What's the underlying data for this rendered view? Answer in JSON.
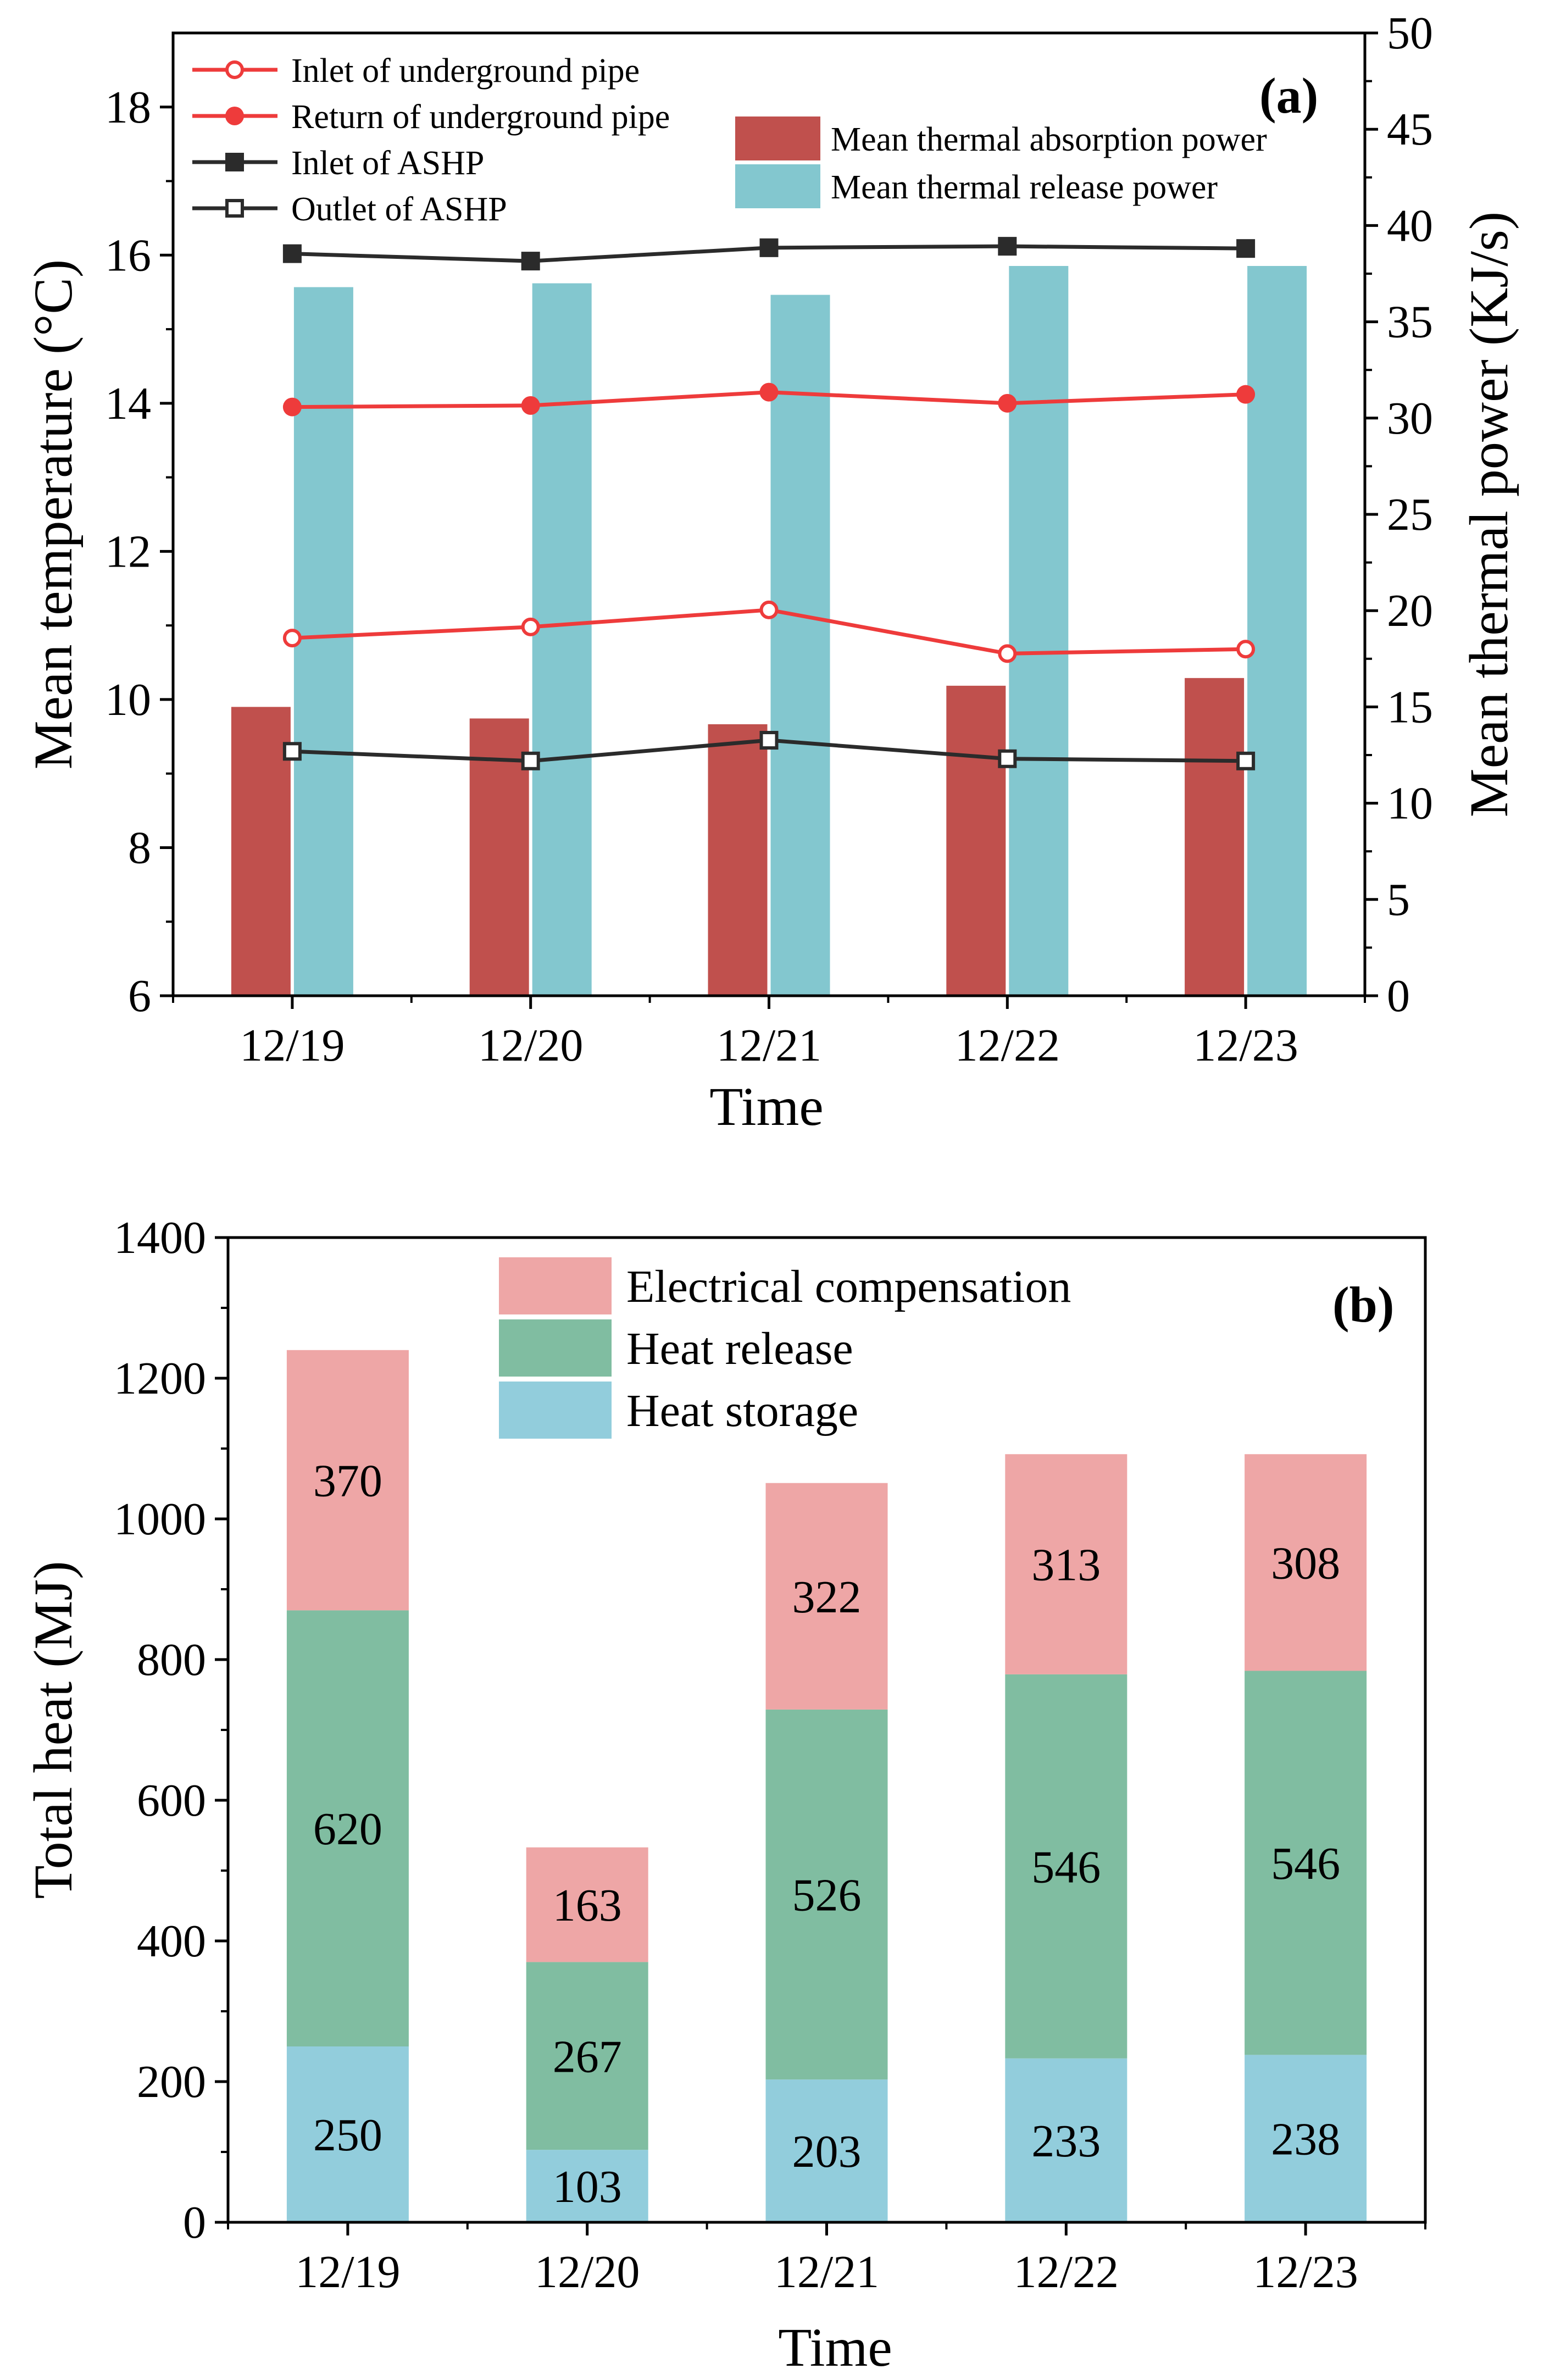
{
  "chart_data": [
    {
      "panel_label": "(a)",
      "type": "bar+line",
      "xlabel": "Time",
      "ylabel_left": "Mean temperature (°C)",
      "ylabel_right": "Mean thermal power (KJ/s)",
      "categories": [
        "12/19",
        "12/20",
        "12/21",
        "12/22",
        "12/23"
      ],
      "ylim_left": [
        6,
        19
      ],
      "yticks_left": [
        "6",
        "8",
        "10",
        "12",
        "14",
        "16",
        "18"
      ],
      "ylim_right": [
        0,
        50
      ],
      "yticks_right": [
        "0",
        "5",
        "10",
        "15",
        "20",
        "25",
        "30",
        "35",
        "40",
        "45",
        "50"
      ],
      "bar_series": [
        {
          "name": "Mean thermal absorption power",
          "color": "#c0504d",
          "values": [
            15.0,
            14.4,
            14.1,
            16.1,
            16.5
          ]
        },
        {
          "name": "Mean thermal release power",
          "color": "#83c7cf",
          "values": [
            36.8,
            37.0,
            36.4,
            37.9,
            37.9
          ]
        }
      ],
      "line_series": [
        {
          "name": "Inlet of underground pipe",
          "color": "#ee3b3b",
          "marker": "open-circle",
          "values": [
            10.83,
            10.98,
            11.21,
            10.62,
            10.68
          ]
        },
        {
          "name": "Return of underground pipe",
          "color": "#ee3b3b",
          "marker": "filled-circle",
          "values": [
            13.95,
            13.97,
            14.15,
            14.0,
            14.12
          ]
        },
        {
          "name": "Inlet of ASHP",
          "color": "#2b2b2b",
          "marker": "filled-square",
          "values": [
            16.02,
            15.92,
            16.1,
            16.12,
            16.09
          ]
        },
        {
          "name": "Outlet of ASHP",
          "color": "#2b2b2b",
          "marker": "open-square",
          "values": [
            9.3,
            9.17,
            9.45,
            9.2,
            9.17
          ]
        }
      ]
    },
    {
      "panel_label": "(b)",
      "type": "stacked-bar",
      "xlabel": "Time",
      "ylabel": "Total heat (MJ)",
      "categories": [
        "12/19",
        "12/20",
        "12/21",
        "12/22",
        "12/23"
      ],
      "ylim": [
        0,
        1400
      ],
      "yticks": [
        "0",
        "200",
        "400",
        "600",
        "800",
        "1000",
        "1200",
        "1400"
      ],
      "series": [
        {
          "name": "Heat storage",
          "color": "#92cddc",
          "values": [
            250,
            103,
            203,
            233,
            238
          ],
          "labels": [
            "250",
            "103",
            "203",
            "233",
            "238"
          ]
        },
        {
          "name": "Heat release",
          "color": "#80bda1",
          "values": [
            620,
            267,
            526,
            546,
            546
          ],
          "labels": [
            "620",
            "267",
            "526",
            "546",
            "546"
          ]
        },
        {
          "name": "Electrical compensation",
          "color": "#eea6a6",
          "values": [
            370,
            163,
            322,
            313,
            308
          ],
          "labels": [
            "370",
            "163",
            "322",
            "313",
            "308"
          ]
        }
      ],
      "legend_order": [
        "Electrical compensation",
        "Heat release",
        "Heat storage"
      ]
    }
  ]
}
